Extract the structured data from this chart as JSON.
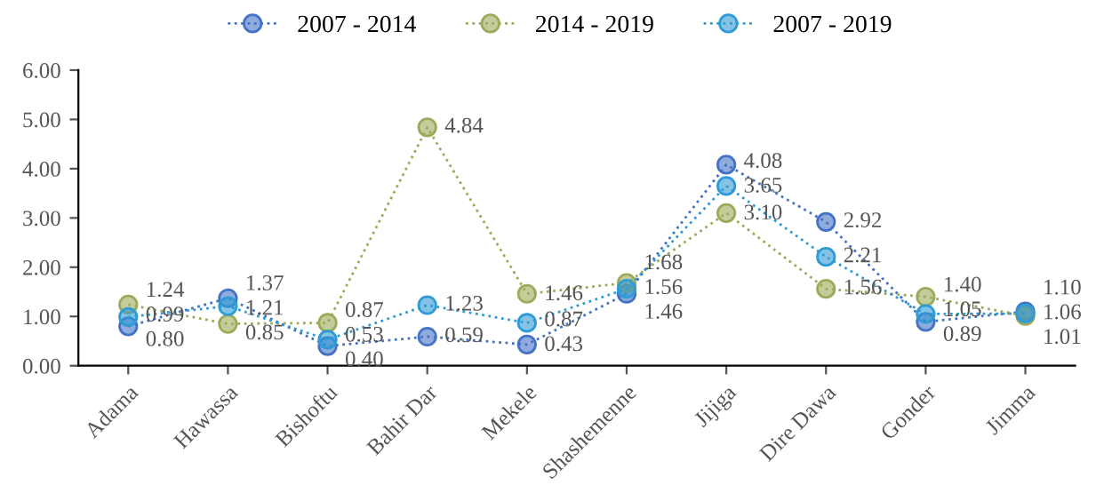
{
  "chart_data": {
    "type": "line",
    "categories": [
      "Adama",
      "Hawassa",
      "Bishoftu",
      "Bahir Dar",
      "Mekele",
      "Shashemenne",
      "Jijiga",
      "Dire Dawa",
      "Gonder",
      "Jimma"
    ],
    "series": [
      {
        "name": "2007 - 2014",
        "color": "#4472c4",
        "values": [
          0.8,
          1.37,
          0.4,
          0.59,
          0.43,
          1.46,
          4.08,
          2.92,
          0.89,
          1.1
        ],
        "value_labels": [
          "0.80",
          "1.37",
          "0.40",
          "0.59",
          "0.43",
          "1.46",
          "4.08",
          "2.92",
          "0.89",
          "1.10"
        ]
      },
      {
        "name": "2014 - 2019",
        "color": "#9bab5a",
        "values": [
          1.24,
          0.85,
          0.87,
          4.84,
          1.46,
          1.68,
          3.1,
          1.56,
          1.4,
          1.01
        ],
        "value_labels": [
          "1.24",
          "0.85",
          "0.87",
          "4.84",
          "1.46",
          "1.68",
          "3.10",
          "1.56",
          "1.40",
          "1.01"
        ]
      },
      {
        "name": "2007 - 2019",
        "color": "#2e9bd6",
        "values": [
          0.99,
          1.21,
          0.53,
          1.23,
          0.87,
          1.56,
          3.65,
          2.21,
          1.05,
          1.06
        ],
        "value_labels": [
          "0.99",
          "1.21",
          "0.53",
          "1.23",
          "0.87",
          "1.56",
          "3.65",
          "2.21",
          "1.05",
          "1.06"
        ]
      }
    ],
    "ylim": [
      0,
      6
    ],
    "yticks": [
      {
        "value": 0,
        "label": "0.00"
      },
      {
        "value": 1,
        "label": "1.00"
      },
      {
        "value": 2,
        "label": "2.00"
      },
      {
        "value": 3,
        "label": "3.00"
      },
      {
        "value": 4,
        "label": "4.00"
      },
      {
        "value": 5,
        "label": "5.00"
      },
      {
        "value": 6,
        "label": "6.00"
      }
    ],
    "legend": "top",
    "grid": false,
    "marker": "circle",
    "line_style": "dotted"
  }
}
